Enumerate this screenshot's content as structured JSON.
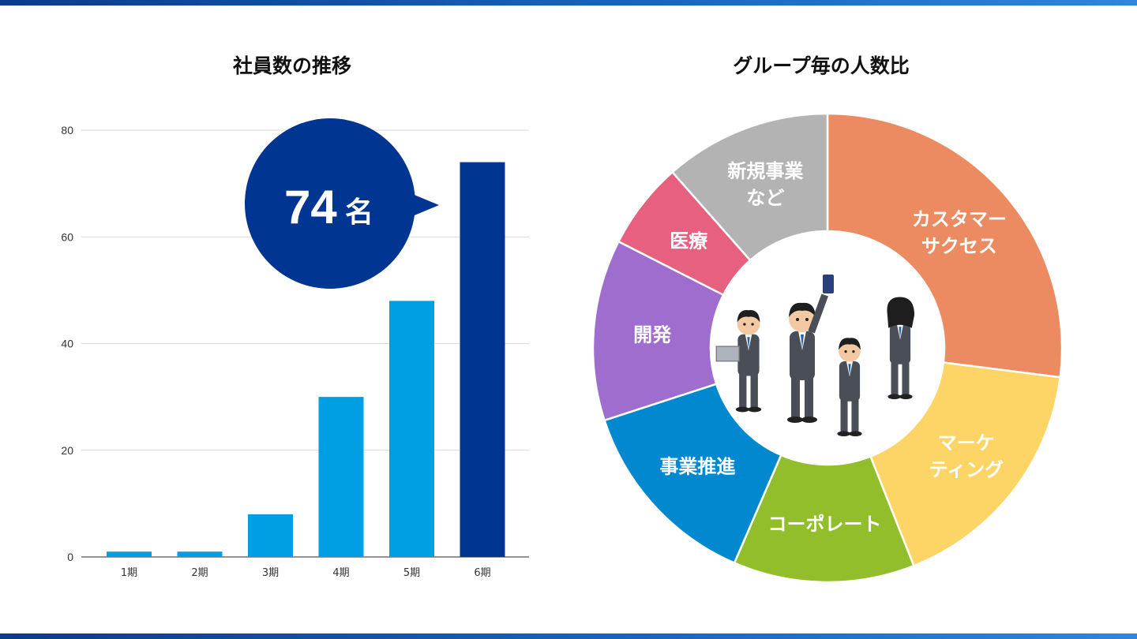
{
  "chart_data": [
    {
      "type": "bar",
      "title": "社員数の推移",
      "categories": [
        "1期",
        "2期",
        "3期",
        "4期",
        "5期",
        "6期"
      ],
      "values": [
        1,
        1,
        8,
        30,
        48,
        74
      ],
      "ylim": [
        0,
        80
      ],
      "yticks": [
        0,
        20,
        40,
        60,
        80
      ],
      "grid": true,
      "colors": [
        "#009fe3",
        "#009fe3",
        "#009fe3",
        "#009fe3",
        "#009fe3",
        "#003591"
      ],
      "callout": {
        "value": "74",
        "unit": "名",
        "color": "#003591"
      }
    },
    {
      "type": "pie",
      "title": "グループ毎の人数比",
      "donut": true,
      "center_image": "business-people-illustration",
      "slices": [
        {
          "label": [
            "カスタマー",
            "サクセス"
          ],
          "value": 27,
          "color": "#ec8b62"
        },
        {
          "label": [
            "マーケ",
            "ティング"
          ],
          "value": 17,
          "color": "#fdd466"
        },
        {
          "label": [
            "コーポレート"
          ],
          "value": 12.5,
          "color": "#91be2a"
        },
        {
          "label": [
            "事業推進"
          ],
          "value": 13.5,
          "color": "#0288cf"
        },
        {
          "label": [
            "開発"
          ],
          "value": 12.5,
          "color": "#9f6dce"
        },
        {
          "label": [
            "医療"
          ],
          "value": 6,
          "color": "#e8607f"
        },
        {
          "label": [
            "新規事業",
            "など"
          ],
          "value": 11.5,
          "color": "#b3b3b3"
        }
      ]
    }
  ]
}
